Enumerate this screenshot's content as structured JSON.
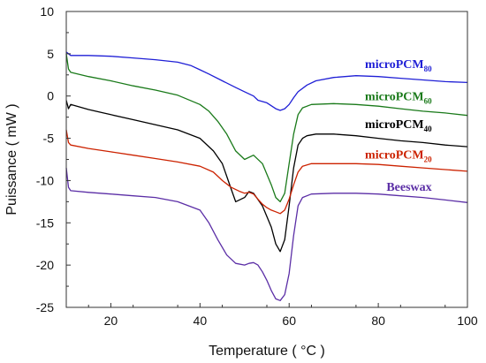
{
  "chart_data": {
    "type": "line",
    "title": "",
    "xlabel": "Temperature ( °C )",
    "ylabel": "Puissance ( mW )",
    "xlim": [
      10,
      100
    ],
    "ylim": [
      -25,
      10
    ],
    "xticks": [
      "20",
      "40",
      "60",
      "80",
      "100"
    ],
    "yticks": [
      "10",
      "5",
      "0",
      "-5",
      "-10",
      "-15",
      "-20",
      "-25"
    ],
    "grid": false,
    "legend": "inline labels at right",
    "series": [
      {
        "name": "microPCM80",
        "label_main": "microPCM",
        "label_sub": "80",
        "color": "#1f1fd6",
        "x": [
          10,
          11,
          15,
          20,
          25,
          30,
          35,
          38,
          40,
          42,
          45,
          48,
          50,
          52,
          53,
          55,
          57,
          58,
          59,
          60,
          61,
          62,
          64,
          66,
          70,
          75,
          80,
          85,
          90,
          95,
          100
        ],
        "y": [
          5.2,
          4.8,
          4.8,
          4.7,
          4.5,
          4.3,
          4.0,
          3.6,
          3.1,
          2.6,
          1.8,
          1.0,
          0.5,
          0.0,
          -0.5,
          -0.8,
          -1.5,
          -1.7,
          -1.5,
          -1.0,
          -0.2,
          0.5,
          1.3,
          1.8,
          2.2,
          2.4,
          2.3,
          2.1,
          1.9,
          1.7,
          1.6
        ]
      },
      {
        "name": "microPCM60",
        "label_main": "microPCM",
        "label_sub": "60",
        "color": "#1a7a1a",
        "x": [
          10,
          10.5,
          11,
          15,
          20,
          25,
          30,
          35,
          40,
          42,
          44,
          46,
          48,
          50,
          52,
          54,
          56,
          57,
          58,
          59,
          60,
          61,
          62,
          63,
          65,
          70,
          75,
          80,
          85,
          90,
          95,
          100
        ],
        "y": [
          5.0,
          3.2,
          2.8,
          2.3,
          1.8,
          1.2,
          0.7,
          0.1,
          -1.0,
          -1.8,
          -3.0,
          -4.5,
          -6.5,
          -7.5,
          -7.0,
          -8.0,
          -10.5,
          -12.0,
          -12.5,
          -11.5,
          -8.0,
          -4.5,
          -2.2,
          -1.4,
          -1.0,
          -0.9,
          -1.0,
          -1.2,
          -1.5,
          -1.8,
          -2.0,
          -2.3
        ]
      },
      {
        "name": "microPCM40",
        "label_main": "microPCM",
        "label_sub": "40",
        "color": "#000000",
        "x": [
          10,
          10.5,
          11,
          15,
          20,
          25,
          30,
          35,
          40,
          43,
          45,
          46,
          47,
          48,
          50,
          51,
          52,
          54,
          56,
          57,
          58,
          59,
          60,
          61,
          62,
          63,
          64,
          66,
          70,
          75,
          80,
          85,
          90,
          95,
          100
        ],
        "y": [
          -0.5,
          -1.5,
          -1.0,
          -1.6,
          -2.2,
          -2.8,
          -3.4,
          -4.0,
          -5.0,
          -6.5,
          -8.0,
          -9.5,
          -11.0,
          -12.5,
          -12.0,
          -11.3,
          -11.5,
          -13.0,
          -15.5,
          -17.5,
          -18.4,
          -17.0,
          -13.0,
          -8.5,
          -5.8,
          -5.0,
          -4.7,
          -4.5,
          -4.5,
          -4.7,
          -5.0,
          -5.3,
          -5.5,
          -5.8,
          -6.0
        ]
      },
      {
        "name": "microPCM20",
        "label_main": "microPCM",
        "label_sub": "20",
        "color": "#cc2200",
        "x": [
          10,
          10.5,
          11,
          15,
          20,
          25,
          30,
          35,
          40,
          43,
          45,
          47,
          49,
          50,
          51,
          52,
          53,
          54,
          55,
          56,
          57,
          58,
          59,
          60,
          61,
          62,
          63,
          65,
          70,
          75,
          80,
          85,
          90,
          95,
          100
        ],
        "y": [
          -4.0,
          -5.5,
          -5.8,
          -6.2,
          -6.6,
          -7.0,
          -7.4,
          -7.8,
          -8.3,
          -9.0,
          -10.0,
          -10.8,
          -11.3,
          -11.5,
          -11.4,
          -11.6,
          -12.2,
          -12.8,
          -13.2,
          -13.5,
          -13.7,
          -13.9,
          -13.5,
          -12.2,
          -10.5,
          -9.0,
          -8.3,
          -8.0,
          -8.0,
          -8.0,
          -8.1,
          -8.3,
          -8.5,
          -8.7,
          -8.9
        ]
      },
      {
        "name": "Beeswax",
        "label_main": "Beeswax",
        "label_sub": "",
        "color": "#5b2ea6",
        "x": [
          10,
          10.5,
          11,
          15,
          20,
          25,
          30,
          35,
          40,
          42,
          44,
          46,
          48,
          50,
          51,
          52,
          53,
          54,
          55,
          56,
          57,
          58,
          59,
          60,
          61,
          62,
          63,
          65,
          70,
          75,
          80,
          85,
          90,
          95,
          100
        ],
        "y": [
          -8.5,
          -10.8,
          -11.2,
          -11.4,
          -11.6,
          -11.8,
          -12.0,
          -12.5,
          -13.5,
          -15.0,
          -17.0,
          -18.8,
          -19.8,
          -20.0,
          -19.8,
          -19.7,
          -20.0,
          -20.8,
          -21.8,
          -23.0,
          -24.0,
          -24.2,
          -23.5,
          -21.0,
          -16.5,
          -13.0,
          -12.0,
          -11.6,
          -11.5,
          -11.5,
          -11.6,
          -11.8,
          -12.0,
          -12.3,
          -12.6
        ]
      }
    ],
    "series_labels": [
      {
        "series": 0,
        "text": "microPCM",
        "sub": "80",
        "x": 92,
        "y": 3.3
      },
      {
        "series": 1,
        "text": "microPCM",
        "sub": "60",
        "x": 92,
        "y": -0.5
      },
      {
        "series": 2,
        "text": "microPCM",
        "sub": "40",
        "x": 92,
        "y": -3.8
      },
      {
        "series": 3,
        "text": "microPCM",
        "sub": "20",
        "x": 92,
        "y": -7.4
      },
      {
        "series": 4,
        "text": "Beeswax",
        "sub": "",
        "x": 92,
        "y": -11.2
      }
    ]
  }
}
